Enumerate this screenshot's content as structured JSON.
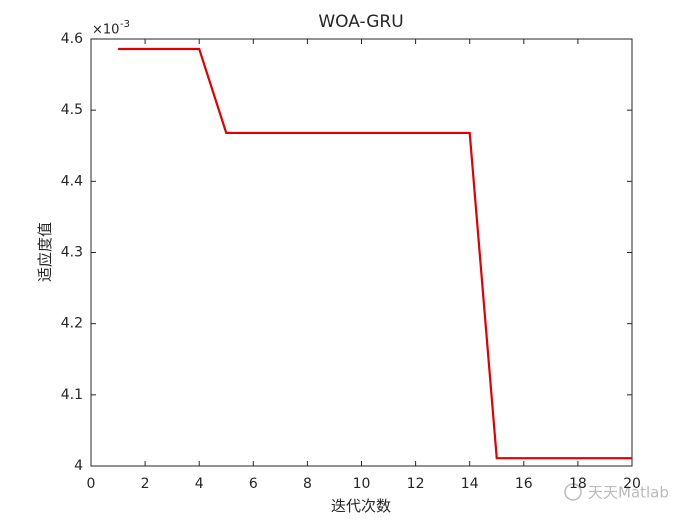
{
  "chart_data": {
    "type": "line",
    "title": "WOA-GRU",
    "xlabel": "迭代次数",
    "ylabel": "适应度值",
    "y_exponent": {
      "base": "×10",
      "power": "-3"
    },
    "x": [
      1,
      2,
      3,
      4,
      5,
      6,
      7,
      8,
      9,
      10,
      11,
      12,
      13,
      14,
      15,
      16,
      17,
      18,
      19,
      20
    ],
    "values": [
      4.586,
      4.586,
      4.586,
      4.586,
      4.468,
      4.468,
      4.468,
      4.468,
      4.468,
      4.468,
      4.468,
      4.468,
      4.468,
      4.468,
      4.011,
      4.011,
      4.011,
      4.011,
      4.011,
      4.011
    ],
    "color": "#e00000",
    "xlim": [
      0,
      20
    ],
    "xticks": [
      0,
      2,
      4,
      6,
      8,
      10,
      12,
      14,
      16,
      18,
      20
    ],
    "ylim": [
      4,
      4.6
    ],
    "yticks": [
      4,
      4.1,
      4.2,
      4.3,
      4.4,
      4.5,
      4.6
    ],
    "grid": false
  },
  "watermark": "天天Matlab"
}
